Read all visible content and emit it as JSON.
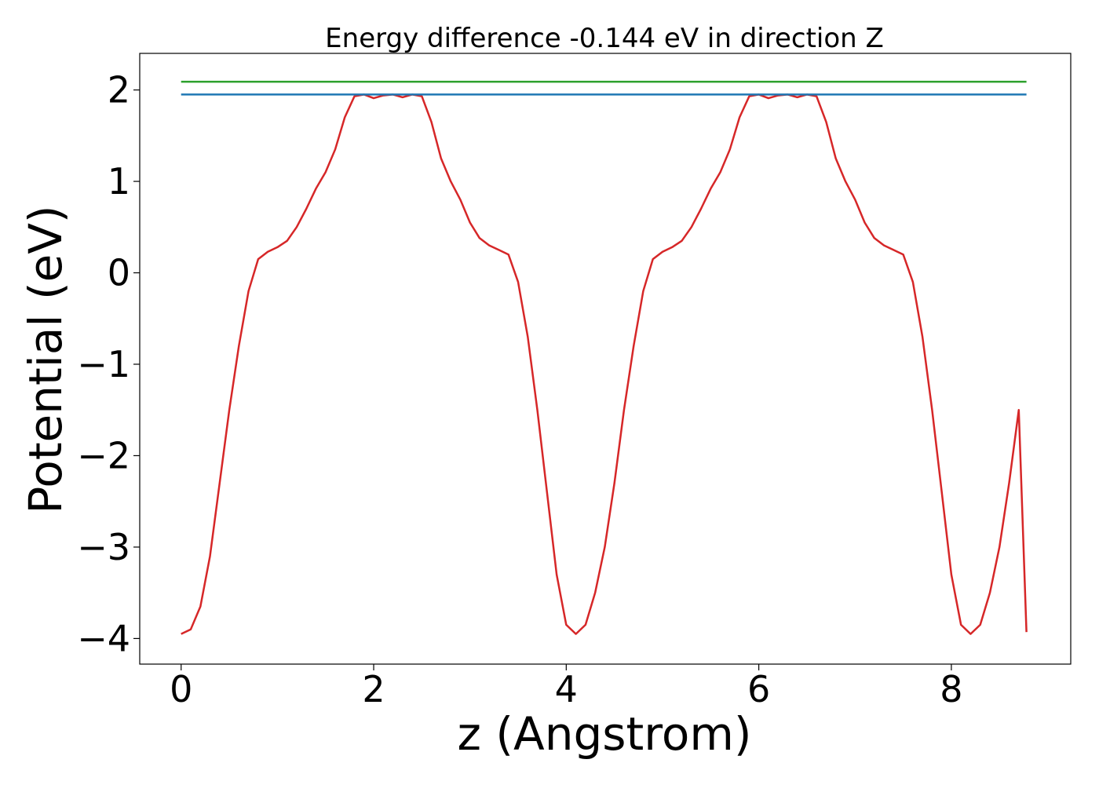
{
  "chart_data": {
    "type": "line",
    "title": "Energy difference -0.144 eV in direction Z",
    "xlabel": "z (Angstrom)",
    "ylabel": "Potential (eV)",
    "xlim": [
      -0.43,
      9.24
    ],
    "ylim": [
      -4.28,
      2.4
    ],
    "xticks": [
      0,
      2,
      4,
      6,
      8
    ],
    "xtick_labels": [
      "0",
      "2",
      "4",
      "6",
      "8"
    ],
    "yticks": [
      -4,
      -3,
      -2,
      -1,
      0,
      1,
      2
    ],
    "ytick_labels": [
      "−4",
      "−3",
      "−2",
      "−1",
      "0",
      "1",
      "2"
    ],
    "grid": false,
    "legend": "none",
    "series": [
      {
        "color": "#d62728",
        "x": [
          0.0,
          0.1,
          0.2,
          0.3,
          0.4,
          0.5,
          0.6,
          0.7,
          0.8,
          0.9,
          1.0,
          1.1,
          1.2,
          1.3,
          1.4,
          1.5,
          1.6,
          1.7,
          1.8,
          1.9,
          2.0,
          2.1,
          2.2,
          2.3,
          2.4,
          2.5,
          2.6,
          2.7,
          2.8,
          2.9,
          3.0,
          3.1,
          3.2,
          3.3,
          3.4,
          3.5,
          3.6,
          3.7,
          3.8,
          3.9,
          4.0,
          4.1,
          4.2,
          4.3,
          4.4,
          4.5,
          4.6,
          4.7,
          4.8,
          4.9,
          5.0,
          5.1,
          5.2,
          5.3,
          5.4,
          5.5,
          5.6,
          5.7,
          5.8,
          5.9,
          6.0,
          6.1,
          6.2,
          6.3,
          6.4,
          6.5,
          6.6,
          6.7,
          6.8,
          6.9,
          7.0,
          7.1,
          7.2,
          7.3,
          7.4,
          7.5,
          7.6,
          7.7,
          7.8,
          7.9,
          8.0,
          8.1,
          8.2,
          8.3,
          8.4,
          8.5,
          8.6,
          8.7,
          8.78
        ],
        "y": [
          -3.95,
          -3.9,
          -3.65,
          -3.1,
          -2.3,
          -1.5,
          -0.8,
          -0.2,
          0.15,
          0.23,
          0.28,
          0.35,
          0.5,
          0.7,
          0.92,
          1.1,
          1.35,
          1.7,
          1.93,
          1.95,
          1.91,
          1.94,
          1.95,
          1.92,
          1.95,
          1.93,
          1.65,
          1.25,
          1.0,
          0.8,
          0.55,
          0.38,
          0.3,
          0.25,
          0.2,
          -0.1,
          -0.7,
          -1.5,
          -2.4,
          -3.3,
          -3.85,
          -3.95,
          -3.85,
          -3.5,
          -3.0,
          -2.3,
          -1.5,
          -0.8,
          -0.2,
          0.15,
          0.23,
          0.28,
          0.35,
          0.5,
          0.7,
          0.92,
          1.1,
          1.35,
          1.7,
          1.93,
          1.95,
          1.91,
          1.94,
          1.95,
          1.92,
          1.95,
          1.93,
          1.65,
          1.25,
          1.0,
          0.8,
          0.55,
          0.38,
          0.3,
          0.25,
          0.2,
          -0.1,
          -0.7,
          -1.5,
          -2.4,
          -3.3,
          -3.85,
          -3.95,
          -3.85,
          -3.5,
          -3.0,
          -2.3,
          -1.5,
          -3.93
        ]
      },
      {
        "color": "#1f77b4",
        "x": [
          0.0,
          8.78
        ],
        "y": [
          1.95,
          1.95
        ]
      },
      {
        "color": "#2ca02c",
        "x": [
          0.0,
          8.78
        ],
        "y": [
          2.09,
          2.09
        ]
      }
    ]
  }
}
